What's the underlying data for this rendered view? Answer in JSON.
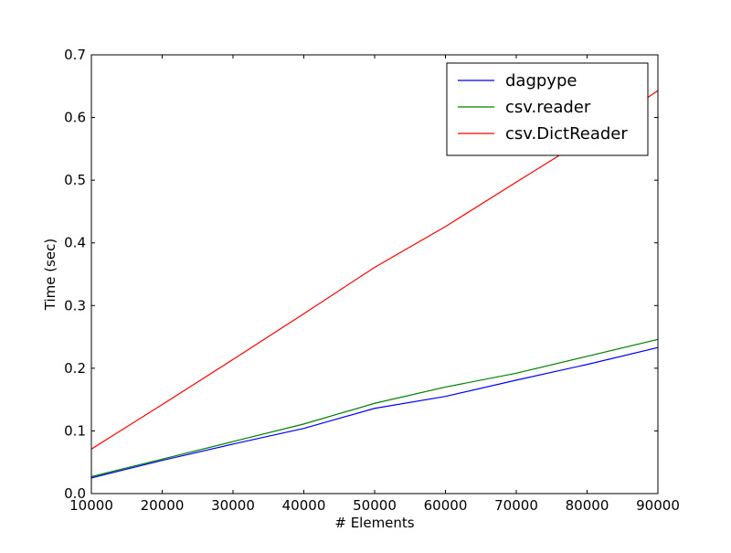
{
  "chart_data": {
    "type": "line",
    "title": "",
    "xlabel": "# Elements",
    "ylabel": "Time (sec)",
    "xlim": [
      10000,
      90000
    ],
    "ylim": [
      0.0,
      0.7
    ],
    "x_ticks": [
      10000,
      20000,
      30000,
      40000,
      50000,
      60000,
      70000,
      80000,
      90000
    ],
    "y_ticks": [
      0.0,
      0.1,
      0.2,
      0.3,
      0.4,
      0.5,
      0.6,
      0.7
    ],
    "x_tick_labels": [
      "10000",
      "20000",
      "30000",
      "40000",
      "50000",
      "60000",
      "70000",
      "80000",
      "90000"
    ],
    "y_tick_labels": [
      "0.0",
      "0.1",
      "0.2",
      "0.3",
      "0.4",
      "0.5",
      "0.6",
      "0.7"
    ],
    "grid": false,
    "legend_position": "top-right",
    "x": [
      10000,
      20000,
      30000,
      40000,
      50000,
      60000,
      70000,
      80000,
      90000
    ],
    "series": [
      {
        "name": "dagpype",
        "color": "#0000ff",
        "values": [
          0.025,
          0.053,
          0.079,
          0.104,
          0.136,
          0.155,
          0.181,
          0.206,
          0.233
        ]
      },
      {
        "name": "csv.reader",
        "color": "#008000",
        "values": [
          0.027,
          0.055,
          0.083,
          0.111,
          0.144,
          0.17,
          0.192,
          0.219,
          0.246
        ]
      },
      {
        "name": "csv.DictReader",
        "color": "#ff0000",
        "values": [
          0.071,
          0.142,
          0.214,
          0.287,
          0.361,
          0.426,
          0.497,
          0.567,
          0.643
        ]
      }
    ]
  }
}
